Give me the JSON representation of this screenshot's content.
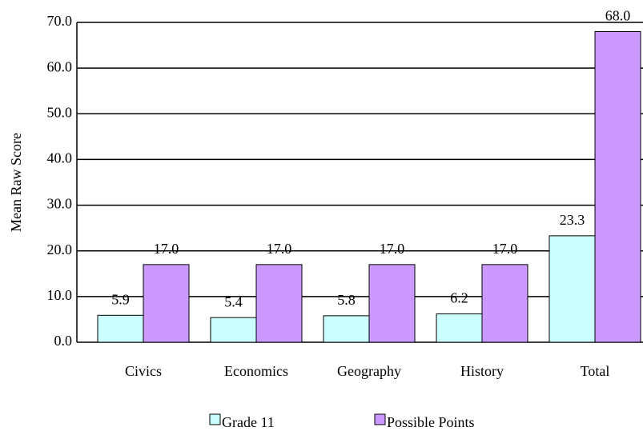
{
  "chart_data": {
    "type": "bar",
    "y_label": "Mean Raw Score",
    "categories": [
      "Civics",
      "Economics",
      "Geography",
      "History",
      "Total"
    ],
    "series": [
      {
        "name": "Grade 11",
        "color": "#ccffff",
        "values": [
          5.9,
          5.4,
          5.8,
          6.2,
          23.3
        ],
        "value_labels": [
          "5.9",
          "5.4",
          "5.8",
          "6.2",
          "23.3"
        ]
      },
      {
        "name": "Possible Points",
        "color": "#cc99ff",
        "values": [
          17.0,
          17.0,
          17.0,
          17.0,
          68.0
        ],
        "value_labels": [
          "17.0",
          "17.0",
          "17.0",
          "17.0",
          "68.0"
        ]
      }
    ],
    "ylim": [
      0,
      70
    ],
    "yticks": [
      {
        "value": 0,
        "label": "0.0"
      },
      {
        "value": 10,
        "label": "10.0"
      },
      {
        "value": 20,
        "label": "20.0"
      },
      {
        "value": 30,
        "label": "30.0"
      },
      {
        "value": 40,
        "label": "40.0"
      },
      {
        "value": 50,
        "label": "50.0"
      },
      {
        "value": 60,
        "label": "60.0"
      },
      {
        "value": 70,
        "label": "70.0"
      }
    ],
    "grid": true,
    "legend": "bottom"
  }
}
